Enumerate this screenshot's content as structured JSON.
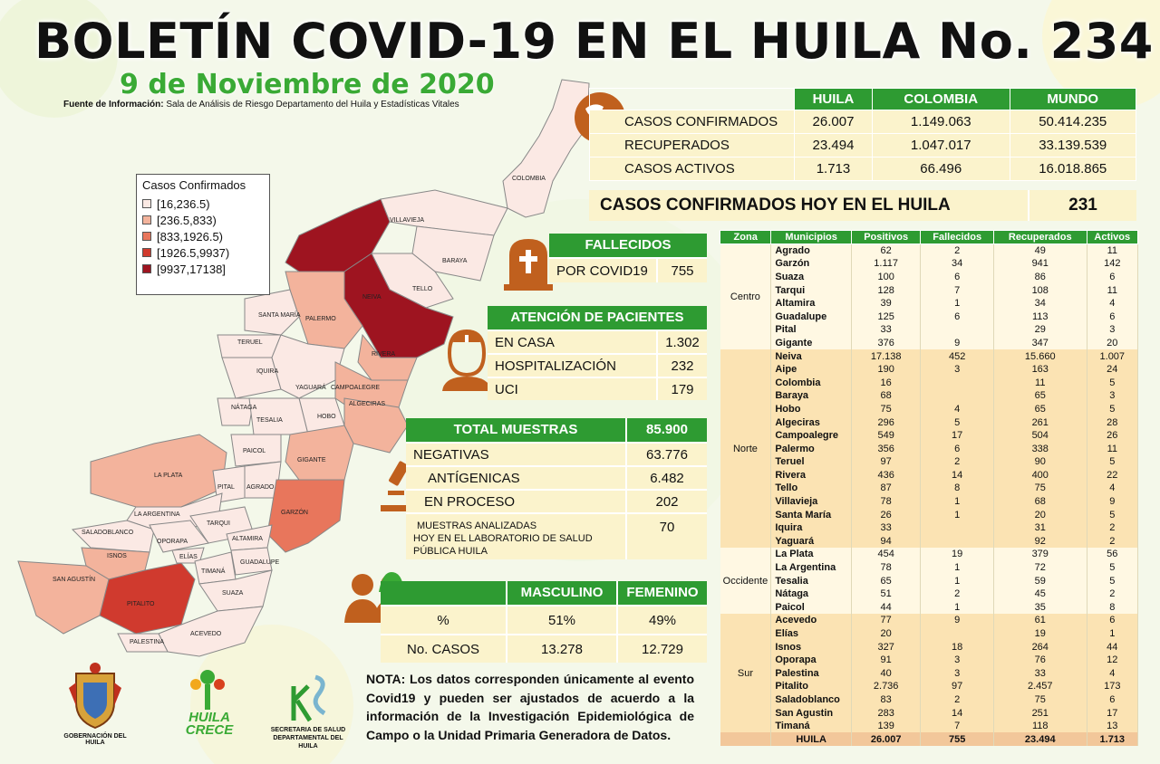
{
  "header": {
    "title": "BOLETÍN COVID-19 EN EL HUILA No. 234",
    "date": "9 de Noviembre de 2020",
    "source_label": "Fuente de Información:",
    "source_text": "Sala de Análisis de Riesgo Departamento del Huila y Estadísticas Vitales"
  },
  "summary": {
    "columns": [
      "HUILA",
      "COLOMBIA",
      "MUNDO"
    ],
    "rows": [
      {
        "label": "CASOS CONFIRMADOS",
        "values": [
          "26.007",
          "1.149.063",
          "50.414.235"
        ]
      },
      {
        "label": "RECUPERADOS",
        "values": [
          "23.494",
          "1.047.017",
          "33.139.539"
        ]
      },
      {
        "label": "CASOS ACTIVOS",
        "values": [
          "1.713",
          "66.496",
          "16.018.865"
        ]
      }
    ],
    "hoy_label": "CASOS CONFIRMADOS  HOY EN EL HUILA",
    "hoy_value": "231"
  },
  "legend": {
    "title": "Casos Confirmados",
    "items": [
      {
        "label": "[16,236.5)",
        "color": "#fbe9e4"
      },
      {
        "label": "[236.5,833)",
        "color": "#f3b39c"
      },
      {
        "label": "[833,1926.5)",
        "color": "#e8765c"
      },
      {
        "label": "[1926.5,9937)",
        "color": "#d03a2e"
      },
      {
        "label": "[9937,17138]",
        "color": "#9e1420"
      }
    ]
  },
  "map_labels": [
    "COLOMBIA",
    "VILLAVIEJA",
    "BARAYA",
    "TELLO",
    "NEIVA",
    "SANTA MARÍA",
    "PALERMO",
    "RIVERA",
    "TERUEL",
    "IQUIRA",
    "YAGUARÁ",
    "CAMPOALEGRE",
    "NÁTAGA",
    "TESALIA",
    "HOBO",
    "ALGECIRAS",
    "PAICOL",
    "GIGANTE",
    "LA PLATA",
    "PITAL",
    "AGRADO",
    "LA ARGENTINA",
    "GARZÓN",
    "SALADOBLANCO",
    "TARQUI",
    "OPORAPA",
    "ALTAMIRA",
    "ISNOS",
    "ELÍAS",
    "GUADALUPE",
    "SAN AGUSTÍN",
    "TIMANÁ",
    "PITALITO",
    "SUAZA",
    "ACEVEDO",
    "PALESTINA"
  ],
  "fallecidos": {
    "head": "FALLECIDOS",
    "label": "POR COVID19",
    "value": "755"
  },
  "atencion": {
    "head": "ATENCIÓN DE PACIENTES",
    "rows": [
      {
        "label": "EN CASA",
        "value": "1.302"
      },
      {
        "label": "HOSPITALIZACIÓN",
        "value": "232"
      },
      {
        "label": "UCI",
        "value": "179"
      }
    ]
  },
  "muestras": {
    "head_label": "TOTAL MUESTRAS",
    "head_value": "85.900",
    "rows": [
      {
        "label": "NEGATIVAS",
        "value": "63.776"
      },
      {
        "label": "ANTÍGENICAS",
        "value": "6.482"
      },
      {
        "label": "EN PROCESO",
        "value": "202"
      }
    ],
    "lab_label_1": "MUESTRAS ANALIZADAS",
    "lab_label_2": "HOY EN EL LABORATORIO DE SALUD PÚBLICA HUILA",
    "lab_value": "70"
  },
  "sexo": {
    "cols": [
      "MASCULINO",
      "FEMENINO"
    ],
    "rows": [
      {
        "label": "%",
        "values": [
          "51%",
          "49%"
        ]
      },
      {
        "label": "No. CASOS",
        "values": [
          "13.278",
          "12.729"
        ]
      }
    ]
  },
  "detail": {
    "headers": [
      "Zona",
      "Municipios",
      "Positivos",
      "Fallecidos",
      "Recuperados",
      "Activos"
    ],
    "zones": [
      {
        "zone": "Centro",
        "cls": "centro",
        "rows": [
          [
            "Agrado",
            "62",
            "2",
            "49",
            "11"
          ],
          [
            "Garzón",
            "1.117",
            "34",
            "941",
            "142"
          ],
          [
            "Suaza",
            "100",
            "6",
            "86",
            "6"
          ],
          [
            "Tarqui",
            "128",
            "7",
            "108",
            "11"
          ],
          [
            "Altamira",
            "39",
            "1",
            "34",
            "4"
          ],
          [
            "Guadalupe",
            "125",
            "6",
            "113",
            "6"
          ],
          [
            "Pital",
            "33",
            "",
            "29",
            "3"
          ],
          [
            "Gigante",
            "376",
            "9",
            "347",
            "20"
          ]
        ]
      },
      {
        "zone": "Norte",
        "cls": "norte",
        "rows": [
          [
            "Neiva",
            "17.138",
            "452",
            "15.660",
            "1.007"
          ],
          [
            "Aipe",
            "190",
            "3",
            "163",
            "24"
          ],
          [
            "Colombia",
            "16",
            "",
            "11",
            "5"
          ],
          [
            "Baraya",
            "68",
            "",
            "65",
            "3"
          ],
          [
            "Hobo",
            "75",
            "4",
            "65",
            "5"
          ],
          [
            "Algeciras",
            "296",
            "5",
            "261",
            "28"
          ],
          [
            "Campoalegre",
            "549",
            "17",
            "504",
            "26"
          ],
          [
            "Palermo",
            "356",
            "6",
            "338",
            "11"
          ],
          [
            "Teruel",
            "97",
            "2",
            "90",
            "5"
          ],
          [
            "Rivera",
            "436",
            "14",
            "400",
            "22"
          ],
          [
            "Tello",
            "87",
            "8",
            "75",
            "4"
          ],
          [
            "Villavieja",
            "78",
            "1",
            "68",
            "9"
          ],
          [
            "Santa María",
            "26",
            "1",
            "20",
            "5"
          ],
          [
            "Iquira",
            "33",
            "",
            "31",
            "2"
          ],
          [
            "Yaguará",
            "94",
            "",
            "92",
            "2"
          ]
        ]
      },
      {
        "zone": "Occidente",
        "cls": "occ",
        "rows": [
          [
            "La Plata",
            "454",
            "19",
            "379",
            "56"
          ],
          [
            "La Argentina",
            "78",
            "1",
            "72",
            "5"
          ],
          [
            "Tesalia",
            "65",
            "1",
            "59",
            "5"
          ],
          [
            "Nátaga",
            "51",
            "2",
            "45",
            "2"
          ],
          [
            "Paicol",
            "44",
            "1",
            "35",
            "8"
          ]
        ]
      },
      {
        "zone": "Sur",
        "cls": "sur",
        "rows": [
          [
            "Acevedo",
            "77",
            "9",
            "61",
            "6"
          ],
          [
            "Elías",
            "20",
            "",
            "19",
            "1"
          ],
          [
            "Isnos",
            "327",
            "18",
            "264",
            "44"
          ],
          [
            "Oporapa",
            "91",
            "3",
            "76",
            "12"
          ],
          [
            "Palestina",
            "40",
            "3",
            "33",
            "4"
          ],
          [
            "Pitalito",
            "2.736",
            "97",
            "2.457",
            "173"
          ],
          [
            "Saladoblanco",
            "83",
            "2",
            "75",
            "6"
          ],
          [
            "San Agustin",
            "283",
            "14",
            "251",
            "17"
          ],
          [
            "Timaná",
            "139",
            "7",
            "118",
            "13"
          ]
        ]
      }
    ],
    "total": [
      "HUILA",
      "26.007",
      "755",
      "23.494",
      "1.713"
    ]
  },
  "nota": "NOTA: Los datos corresponden únicamente al evento Covid19 y pueden ser ajustados de acuerdo a la información de la Investigación Epidemiológica de Campo o la Unidad Primaria Generadora de Datos.",
  "logos": {
    "gob": "GOBERNACIÓN DEL HUILA",
    "crece_1": "HUILA",
    "crece_2": "CRECE",
    "sec_1": "SECRETARIA DE SALUD",
    "sec_2": "DEPARTAMENTAL DEL HUILA"
  },
  "colors": {
    "green": "#2e9b32",
    "cream": "#fbf3cc",
    "orange": "#c0601e"
  }
}
